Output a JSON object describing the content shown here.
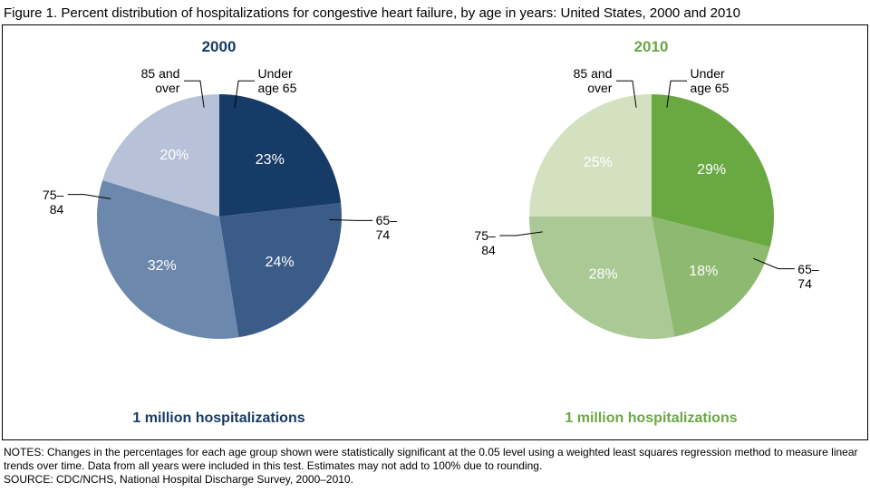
{
  "figure_title": "Figure 1. Percent distribution of hospitalizations for congestive heart failure, by age in years: United States, 2000 and 2010",
  "background_color": "#ffffff",
  "border_color": "#000000",
  "text_color": "#000000",
  "title_fontsize": 15,
  "year_fontsize": 17,
  "subcap_fontsize": 16,
  "extlabel_fontsize": 14,
  "pct_fontsize": 16,
  "notes_fontsize": 12,
  "pie_radius": 135,
  "label_radius_factor": 0.62,
  "leader_r1_factor": 0.9,
  "leader_r2_factor": 1.12,
  "leader_elbow_len": 18,
  "panels": [
    {
      "year": "2000",
      "year_color": "#163b66",
      "sub_caption": "1 million hospitalizations",
      "type": "pie",
      "start_angle_deg": 90,
      "direction": "clockwise",
      "slices": [
        {
          "label": "Under\nage 65",
          "value": 23,
          "color": "#163b66",
          "pct_color": "#ffffff"
        },
        {
          "label": "65–74",
          "value": 24,
          "color": "#3b5c88",
          "pct_color": "#ffffff"
        },
        {
          "label": "75–84",
          "value": 32,
          "color": "#6c88ac",
          "pct_color": "#ffffff"
        },
        {
          "label": "85 and\nover",
          "value": 20,
          "color": "#b7c2d9",
          "pct_color": "#000000"
        }
      ]
    },
    {
      "year": "2010",
      "year_color": "#6aa842",
      "sub_caption": "1 million hospitalizations",
      "type": "pie",
      "start_angle_deg": 90,
      "direction": "clockwise",
      "slices": [
        {
          "label": "Under\nage 65",
          "value": 29,
          "color": "#6aa842",
          "pct_color": "#ffffff"
        },
        {
          "label": "65–74",
          "value": 18,
          "color": "#8eb971",
          "pct_color": "#ffffff"
        },
        {
          "label": "75–84",
          "value": 28,
          "color": "#aac995",
          "pct_color": "#ffffff"
        },
        {
          "label": "85 and\nover",
          "value": 25,
          "color": "#d3e1c1",
          "pct_color": "#000000"
        }
      ]
    }
  ],
  "notes_lines": [
    "NOTES: Changes in the percentages for each age group shown were statistically significant at the 0.05 level using a weighted least squares regression method to measure linear trends over time. Data from all years were included in this test. Estimates may not add to 100% due to rounding.",
    "SOURCE: CDC/NCHS, National Hospital Discharge Survey, 2000–2010."
  ]
}
